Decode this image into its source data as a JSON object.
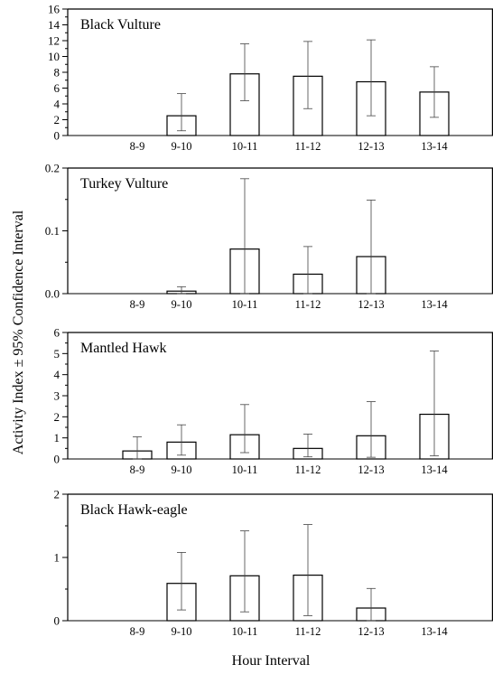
{
  "figure": {
    "ylabel": "Activity Index ± 95% Confidence Interval",
    "xlabel": "Hour Interval"
  },
  "chart_data": [
    {
      "type": "bar",
      "title": "Black Vulture",
      "categories": [
        "8-9",
        "9-10",
        "10-11",
        "11-12",
        "12-13",
        "13-14"
      ],
      "values": [
        0,
        2.5,
        7.8,
        7.5,
        6.8,
        5.5
      ],
      "ci_lower": [
        0,
        0.6,
        4.4,
        3.4,
        2.5,
        2.3
      ],
      "ci_upper": [
        0,
        5.3,
        11.6,
        11.9,
        12.1,
        8.7
      ],
      "ylim": [
        0,
        16
      ],
      "yticks": [
        "0",
        "2",
        "4",
        "6",
        "8",
        "10",
        "12",
        "14",
        "16"
      ],
      "grid": false
    },
    {
      "type": "bar",
      "title": "Turkey Vulture",
      "categories": [
        "8-9",
        "9-10",
        "10-11",
        "11-12",
        "12-13",
        "13-14"
      ],
      "values": [
        0,
        0.004,
        0.071,
        0.031,
        0.059,
        0
      ],
      "ci_lower": [
        0,
        0.0,
        0.0,
        0.0,
        0.0,
        0
      ],
      "ci_upper": [
        0,
        0.011,
        0.183,
        0.075,
        0.149,
        0
      ],
      "ylim": [
        0,
        0.2
      ],
      "yticks": [
        "0.0",
        "0.1",
        "0.2"
      ],
      "grid": false
    },
    {
      "type": "bar",
      "title": "Mantled Hawk",
      "categories": [
        "8-9",
        "9-10",
        "10-11",
        "11-12",
        "12-13",
        "13-14"
      ],
      "values": [
        0.38,
        0.8,
        1.15,
        0.5,
        1.1,
        2.12
      ],
      "ci_lower": [
        0.0,
        0.18,
        0.3,
        0.1,
        0.08,
        0.15
      ],
      "ci_upper": [
        1.05,
        1.62,
        2.58,
        1.18,
        2.72,
        5.12
      ],
      "ylim": [
        0,
        6
      ],
      "yticks": [
        "0",
        "1",
        "2",
        "3",
        "4",
        "5",
        "6"
      ],
      "grid": false
    },
    {
      "type": "bar",
      "title": "Black Hawk-eagle",
      "categories": [
        "8-9",
        "9-10",
        "10-11",
        "11-12",
        "12-13",
        "13-14"
      ],
      "values": [
        0,
        0.59,
        0.71,
        0.72,
        0.2,
        0
      ],
      "ci_lower": [
        0,
        0.17,
        0.14,
        0.08,
        0.0,
        0
      ],
      "ci_upper": [
        0,
        1.08,
        1.42,
        1.52,
        0.51,
        0
      ],
      "ylim": [
        0,
        2
      ],
      "yticks": [
        "0",
        "1",
        "2"
      ],
      "grid": false
    }
  ]
}
